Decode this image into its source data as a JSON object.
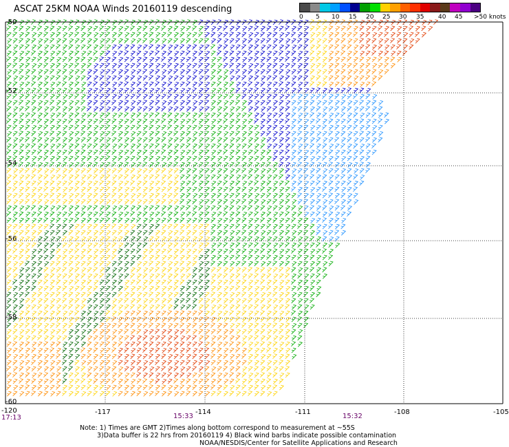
{
  "title": "ASCAT 25KM NOAA Winds 20160119 descending",
  "legend": {
    "colors": [
      "#4a4a4a",
      "#8a8a8a",
      "#00c8e6",
      "#00a0ff",
      "#0050ff",
      "#000090",
      "#00a000",
      "#00e000",
      "#ffd000",
      "#ffa000",
      "#ff6000",
      "#ff3000",
      "#e00000",
      "#8a1a1a",
      "#5a3a1a",
      "#c000c0",
      "#9000d0",
      "#4b0082"
    ],
    "labels": [
      "0",
      "5",
      "10",
      "15",
      "20",
      "25",
      "30",
      "35",
      "40",
      "45",
      ">50 knots"
    ]
  },
  "map": {
    "lon_ticks": [
      "-120",
      "-117",
      "-114",
      "-111",
      "-108",
      "-105"
    ],
    "lat_ticks": [
      "-50",
      "-52",
      "-54",
      "-56",
      "-58",
      "-60"
    ],
    "times": [
      {
        "text": "17:13",
        "lon_label_index": 0
      },
      {
        "text": "15:33",
        "lon_label_index": 2
      },
      {
        "text": "15:32",
        "lon_label_index": 4
      }
    ],
    "zone_colors": {
      "green": "#00aa00",
      "darkgreen": "#006400",
      "blue": "#0000cc",
      "lightblue": "#1e90ff",
      "yellow": "#ffd200",
      "orange": "#ff8c00",
      "red": "#e23c00"
    }
  },
  "footer": {
    "line1": "Note: 1) Times are GMT 2)Times along bottom correspond to measurement at ~55S",
    "line2": "3)Data buffer is 22 hrs from 20160119 4) Black wind barbs indicate possible contamination",
    "line3": "NOAA/NESDIS/Center for Satellite Applications and Research"
  }
}
